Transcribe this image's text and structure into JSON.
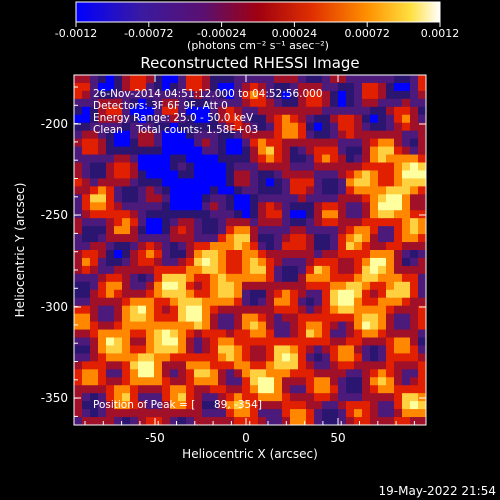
{
  "colorbar": {
    "tick_labels": [
      "-0.0012",
      "-0.00072",
      "-0.00024",
      "0.00024",
      "0.00072",
      "0.0012"
    ],
    "unit_label": "(photons cm⁻² s⁻¹ asec⁻²)"
  },
  "plot": {
    "title": "Reconstructed RHESSI Image",
    "xlabel": "Heliocentric X (arcsec)",
    "ylabel": "Heliocentric Y (arcsec)",
    "x_ticks": [
      "-50",
      "0",
      "50"
    ],
    "y_ticks": [
      "-200",
      "-250",
      "-300",
      "-350"
    ],
    "info_lines": [
      "26-Nov-2014 04:51:12.000 to 04:52:56.000",
      "Detectors: 3F 6F 9F, Att 0",
      "Energy Range: 25.0 - 50.0 keV",
      "Clean    Total counts: 1.58E+03"
    ],
    "peak_label": "Position of Peak = [",
    "peak_value": "89, -354]",
    "colormap": [
      "#0000ff",
      "#2a1670",
      "#4b1a7a",
      "#a01028",
      "#e02000",
      "#ff8800",
      "#ffd040",
      "#ffffa0"
    ]
  },
  "footer": {
    "timestamp": "19-May-2022 21:54"
  }
}
